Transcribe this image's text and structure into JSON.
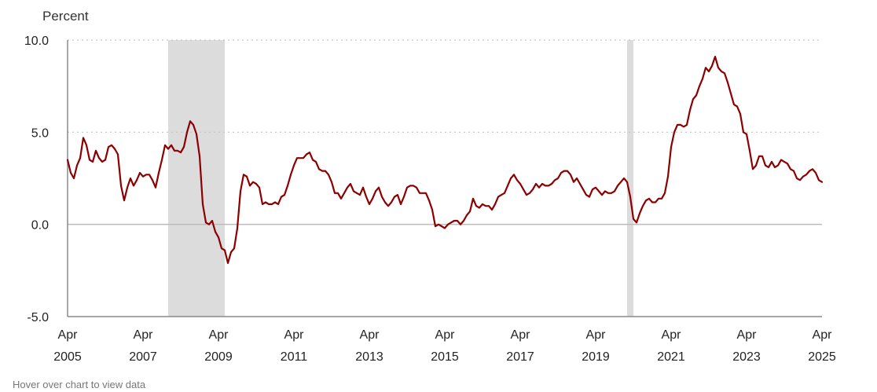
{
  "chart_data": {
    "type": "line",
    "ylabel": "Percent",
    "ylim": [
      -5,
      10
    ],
    "y_ticks": [
      {
        "value": 10,
        "label": "10.0"
      },
      {
        "value": 5,
        "label": "5.0"
      },
      {
        "value": 0,
        "label": "0.0"
      },
      {
        "value": -5,
        "label": "-5.0"
      }
    ],
    "xlim": [
      "2005-04",
      "2025-04"
    ],
    "x_ticks": [
      {
        "date": "2005-04",
        "line1": "Apr",
        "line2": "2005"
      },
      {
        "date": "2007-04",
        "line1": "Apr",
        "line2": "2007"
      },
      {
        "date": "2009-04",
        "line1": "Apr",
        "line2": "2009"
      },
      {
        "date": "2011-04",
        "line1": "Apr",
        "line2": "2011"
      },
      {
        "date": "2013-04",
        "line1": "Apr",
        "line2": "2013"
      },
      {
        "date": "2015-04",
        "line1": "Apr",
        "line2": "2015"
      },
      {
        "date": "2017-04",
        "line1": "Apr",
        "line2": "2017"
      },
      {
        "date": "2019-04",
        "line1": "Apr",
        "line2": "2019"
      },
      {
        "date": "2021-04",
        "line1": "Apr",
        "line2": "2021"
      },
      {
        "date": "2023-04",
        "line1": "Apr",
        "line2": "2023"
      },
      {
        "date": "2025-04",
        "line1": "Apr",
        "line2": "2025"
      }
    ],
    "grid": "horizontal dotted",
    "shaded_periods": [
      {
        "start": "2007-12",
        "end": "2009-06"
      },
      {
        "start": "2020-02",
        "end": "2020-04"
      }
    ],
    "line_color": "#8b0000",
    "shade_color": "#dcdcdc",
    "series": [
      {
        "points": [
          [
            "2005-04",
            3.5
          ],
          [
            "2005-05",
            2.8
          ],
          [
            "2005-06",
            2.5
          ],
          [
            "2005-07",
            3.2
          ],
          [
            "2005-08",
            3.6
          ],
          [
            "2005-09",
            4.7
          ],
          [
            "2005-10",
            4.3
          ],
          [
            "2005-11",
            3.5
          ],
          [
            "2005-12",
            3.4
          ],
          [
            "2006-01",
            4.0
          ],
          [
            "2006-02",
            3.6
          ],
          [
            "2006-03",
            3.4
          ],
          [
            "2006-04",
            3.5
          ],
          [
            "2006-05",
            4.2
          ],
          [
            "2006-06",
            4.3
          ],
          [
            "2006-07",
            4.1
          ],
          [
            "2006-08",
            3.8
          ],
          [
            "2006-09",
            2.1
          ],
          [
            "2006-10",
            1.3
          ],
          [
            "2006-11",
            2.0
          ],
          [
            "2006-12",
            2.5
          ],
          [
            "2007-01",
            2.1
          ],
          [
            "2007-02",
            2.4
          ],
          [
            "2007-03",
            2.8
          ],
          [
            "2007-04",
            2.6
          ],
          [
            "2007-05",
            2.7
          ],
          [
            "2007-06",
            2.7
          ],
          [
            "2007-07",
            2.4
          ],
          [
            "2007-08",
            2.0
          ],
          [
            "2007-09",
            2.8
          ],
          [
            "2007-10",
            3.5
          ],
          [
            "2007-11",
            4.3
          ],
          [
            "2007-12",
            4.1
          ],
          [
            "2008-01",
            4.3
          ],
          [
            "2008-02",
            4.0
          ],
          [
            "2008-03",
            4.0
          ],
          [
            "2008-04",
            3.9
          ],
          [
            "2008-05",
            4.2
          ],
          [
            "2008-06",
            5.0
          ],
          [
            "2008-07",
            5.6
          ],
          [
            "2008-08",
            5.4
          ],
          [
            "2008-09",
            4.9
          ],
          [
            "2008-10",
            3.7
          ],
          [
            "2008-11",
            1.1
          ],
          [
            "2008-12",
            0.1
          ],
          [
            "2009-01",
            0.0
          ],
          [
            "2009-02",
            0.2
          ],
          [
            "2009-03",
            -0.4
          ],
          [
            "2009-04",
            -0.7
          ],
          [
            "2009-05",
            -1.3
          ],
          [
            "2009-06",
            -1.4
          ],
          [
            "2009-07",
            -2.1
          ],
          [
            "2009-08",
            -1.5
          ],
          [
            "2009-09",
            -1.3
          ],
          [
            "2009-10",
            -0.2
          ],
          [
            "2009-11",
            1.8
          ],
          [
            "2009-12",
            2.7
          ],
          [
            "2010-01",
            2.6
          ],
          [
            "2010-02",
            2.1
          ],
          [
            "2010-03",
            2.3
          ],
          [
            "2010-04",
            2.2
          ],
          [
            "2010-05",
            2.0
          ],
          [
            "2010-06",
            1.1
          ],
          [
            "2010-07",
            1.2
          ],
          [
            "2010-08",
            1.1
          ],
          [
            "2010-09",
            1.1
          ],
          [
            "2010-10",
            1.2
          ],
          [
            "2010-11",
            1.1
          ],
          [
            "2010-12",
            1.5
          ],
          [
            "2011-01",
            1.6
          ],
          [
            "2011-02",
            2.1
          ],
          [
            "2011-03",
            2.7
          ],
          [
            "2011-04",
            3.2
          ],
          [
            "2011-05",
            3.6
          ],
          [
            "2011-06",
            3.6
          ],
          [
            "2011-07",
            3.6
          ],
          [
            "2011-08",
            3.8
          ],
          [
            "2011-09",
            3.9
          ],
          [
            "2011-10",
            3.5
          ],
          [
            "2011-11",
            3.4
          ],
          [
            "2011-12",
            3.0
          ],
          [
            "2012-01",
            2.9
          ],
          [
            "2012-02",
            2.9
          ],
          [
            "2012-03",
            2.7
          ],
          [
            "2012-04",
            2.3
          ],
          [
            "2012-05",
            1.7
          ],
          [
            "2012-06",
            1.7
          ],
          [
            "2012-07",
            1.4
          ],
          [
            "2012-08",
            1.7
          ],
          [
            "2012-09",
            2.0
          ],
          [
            "2012-10",
            2.2
          ],
          [
            "2012-11",
            1.8
          ],
          [
            "2012-12",
            1.7
          ],
          [
            "2013-01",
            1.6
          ],
          [
            "2013-02",
            2.0
          ],
          [
            "2013-03",
            1.5
          ],
          [
            "2013-04",
            1.1
          ],
          [
            "2013-05",
            1.4
          ],
          [
            "2013-06",
            1.8
          ],
          [
            "2013-07",
            2.0
          ],
          [
            "2013-08",
            1.5
          ],
          [
            "2013-09",
            1.2
          ],
          [
            "2013-10",
            1.0
          ],
          [
            "2013-11",
            1.2
          ],
          [
            "2013-12",
            1.5
          ],
          [
            "2014-01",
            1.6
          ],
          [
            "2014-02",
            1.1
          ],
          [
            "2014-03",
            1.5
          ],
          [
            "2014-04",
            2.0
          ],
          [
            "2014-05",
            2.1
          ],
          [
            "2014-06",
            2.1
          ],
          [
            "2014-07",
            2.0
          ],
          [
            "2014-08",
            1.7
          ],
          [
            "2014-09",
            1.7
          ],
          [
            "2014-10",
            1.7
          ],
          [
            "2014-11",
            1.3
          ],
          [
            "2014-12",
            0.8
          ],
          [
            "2015-01",
            -0.1
          ],
          [
            "2015-02",
            0.0
          ],
          [
            "2015-03",
            -0.1
          ],
          [
            "2015-04",
            -0.2
          ],
          [
            "2015-05",
            0.0
          ],
          [
            "2015-06",
            0.1
          ],
          [
            "2015-07",
            0.2
          ],
          [
            "2015-08",
            0.2
          ],
          [
            "2015-09",
            0.0
          ],
          [
            "2015-10",
            0.2
          ],
          [
            "2015-11",
            0.5
          ],
          [
            "2015-12",
            0.7
          ],
          [
            "2016-01",
            1.4
          ],
          [
            "2016-02",
            1.0
          ],
          [
            "2016-03",
            0.9
          ],
          [
            "2016-04",
            1.1
          ],
          [
            "2016-05",
            1.0
          ],
          [
            "2016-06",
            1.0
          ],
          [
            "2016-07",
            0.8
          ],
          [
            "2016-08",
            1.1
          ],
          [
            "2016-09",
            1.5
          ],
          [
            "2016-10",
            1.6
          ],
          [
            "2016-11",
            1.7
          ],
          [
            "2016-12",
            2.1
          ],
          [
            "2017-01",
            2.5
          ],
          [
            "2017-02",
            2.7
          ],
          [
            "2017-03",
            2.4
          ],
          [
            "2017-04",
            2.2
          ],
          [
            "2017-05",
            1.9
          ],
          [
            "2017-06",
            1.6
          ],
          [
            "2017-07",
            1.7
          ],
          [
            "2017-08",
            1.9
          ],
          [
            "2017-09",
            2.2
          ],
          [
            "2017-10",
            2.0
          ],
          [
            "2017-11",
            2.2
          ],
          [
            "2017-12",
            2.1
          ],
          [
            "2018-01",
            2.1
          ],
          [
            "2018-02",
            2.2
          ],
          [
            "2018-03",
            2.4
          ],
          [
            "2018-04",
            2.5
          ],
          [
            "2018-05",
            2.8
          ],
          [
            "2018-06",
            2.9
          ],
          [
            "2018-07",
            2.9
          ],
          [
            "2018-08",
            2.7
          ],
          [
            "2018-09",
            2.3
          ],
          [
            "2018-10",
            2.5
          ],
          [
            "2018-11",
            2.2
          ],
          [
            "2018-12",
            1.9
          ],
          [
            "2019-01",
            1.6
          ],
          [
            "2019-02",
            1.5
          ],
          [
            "2019-03",
            1.9
          ],
          [
            "2019-04",
            2.0
          ],
          [
            "2019-05",
            1.8
          ],
          [
            "2019-06",
            1.6
          ],
          [
            "2019-07",
            1.8
          ],
          [
            "2019-08",
            1.7
          ],
          [
            "2019-09",
            1.7
          ],
          [
            "2019-10",
            1.8
          ],
          [
            "2019-11",
            2.1
          ],
          [
            "2019-12",
            2.3
          ],
          [
            "2020-01",
            2.5
          ],
          [
            "2020-02",
            2.3
          ],
          [
            "2020-03",
            1.5
          ],
          [
            "2020-04",
            0.3
          ],
          [
            "2020-05",
            0.1
          ],
          [
            "2020-06",
            0.6
          ],
          [
            "2020-07",
            1.0
          ],
          [
            "2020-08",
            1.3
          ],
          [
            "2020-09",
            1.4
          ],
          [
            "2020-10",
            1.2
          ],
          [
            "2020-11",
            1.2
          ],
          [
            "2020-12",
            1.4
          ],
          [
            "2021-01",
            1.4
          ],
          [
            "2021-02",
            1.7
          ],
          [
            "2021-03",
            2.6
          ],
          [
            "2021-04",
            4.2
          ],
          [
            "2021-05",
            5.0
          ],
          [
            "2021-06",
            5.4
          ],
          [
            "2021-07",
            5.4
          ],
          [
            "2021-08",
            5.3
          ],
          [
            "2021-09",
            5.4
          ],
          [
            "2021-10",
            6.2
          ],
          [
            "2021-11",
            6.8
          ],
          [
            "2021-12",
            7.0
          ],
          [
            "2022-01",
            7.5
          ],
          [
            "2022-02",
            7.9
          ],
          [
            "2022-03",
            8.5
          ],
          [
            "2022-04",
            8.3
          ],
          [
            "2022-05",
            8.6
          ],
          [
            "2022-06",
            9.1
          ],
          [
            "2022-07",
            8.5
          ],
          [
            "2022-08",
            8.3
          ],
          [
            "2022-09",
            8.2
          ],
          [
            "2022-10",
            7.7
          ],
          [
            "2022-11",
            7.1
          ],
          [
            "2022-12",
            6.5
          ],
          [
            "2023-01",
            6.4
          ],
          [
            "2023-02",
            6.0
          ],
          [
            "2023-03",
            5.0
          ],
          [
            "2023-04",
            4.9
          ],
          [
            "2023-05",
            4.0
          ],
          [
            "2023-06",
            3.0
          ],
          [
            "2023-07",
            3.2
          ],
          [
            "2023-08",
            3.7
          ],
          [
            "2023-09",
            3.7
          ],
          [
            "2023-10",
            3.2
          ],
          [
            "2023-11",
            3.1
          ],
          [
            "2023-12",
            3.4
          ],
          [
            "2024-01",
            3.1
          ],
          [
            "2024-02",
            3.2
          ],
          [
            "2024-03",
            3.5
          ],
          [
            "2024-04",
            3.4
          ],
          [
            "2024-05",
            3.3
          ],
          [
            "2024-06",
            3.0
          ],
          [
            "2024-07",
            2.9
          ],
          [
            "2024-08",
            2.5
          ],
          [
            "2024-09",
            2.4
          ],
          [
            "2024-10",
            2.6
          ],
          [
            "2024-11",
            2.7
          ],
          [
            "2024-12",
            2.9
          ],
          [
            "2025-01",
            3.0
          ],
          [
            "2025-02",
            2.8
          ],
          [
            "2025-03",
            2.4
          ],
          [
            "2025-04",
            2.3
          ]
        ]
      }
    ]
  },
  "hint_text": "Hover over chart to view data"
}
